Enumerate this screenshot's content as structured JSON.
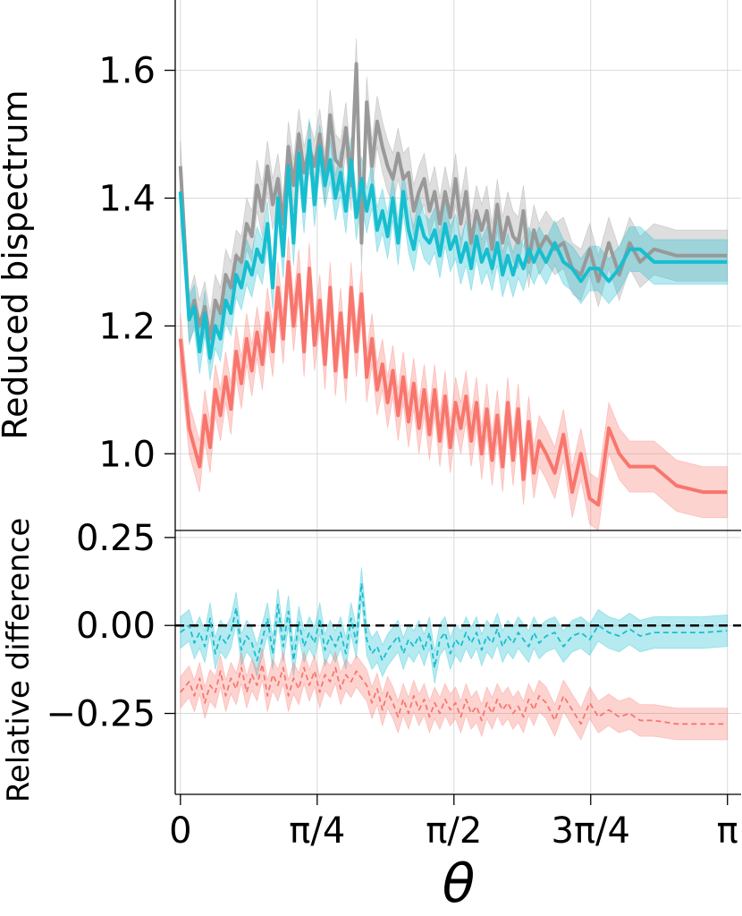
{
  "chart_data": [
    {
      "type": "line",
      "panel": "top",
      "ylabel": "Reduced bispectrum",
      "xlim": [
        -0.03,
        3.22
      ],
      "ylim": [
        0.88,
        1.71
      ],
      "grid": true,
      "x_ticks": [
        {
          "value": 0,
          "label": "0"
        },
        {
          "value": 0.785398,
          "label": "π/4"
        },
        {
          "value": 1.570796,
          "label": "π/2"
        },
        {
          "value": 2.356194,
          "label": "3π/4"
        },
        {
          "value": 3.141593,
          "label": "π"
        }
      ],
      "y_ticks": [
        {
          "value": 1.0,
          "label": "1.0"
        },
        {
          "value": 1.2,
          "label": "1.2"
        },
        {
          "value": 1.4,
          "label": "1.4"
        },
        {
          "value": 1.6,
          "label": "1.6"
        }
      ],
      "series": [
        {
          "name": "gray",
          "color": "#999999",
          "band_half_width": 0.04,
          "x": [
            0.0,
            0.05,
            0.08,
            0.11,
            0.14,
            0.17,
            0.2,
            0.23,
            0.26,
            0.29,
            0.32,
            0.35,
            0.38,
            0.41,
            0.44,
            0.47,
            0.5,
            0.53,
            0.56,
            0.59,
            0.62,
            0.65,
            0.68,
            0.71,
            0.74,
            0.77,
            0.8,
            0.83,
            0.86,
            0.89,
            0.92,
            0.95,
            0.98,
            1.01,
            1.04,
            1.07,
            1.1,
            1.13,
            1.16,
            1.19,
            1.22,
            1.25,
            1.28,
            1.31,
            1.34,
            1.37,
            1.4,
            1.43,
            1.46,
            1.49,
            1.52,
            1.55,
            1.58,
            1.61,
            1.64,
            1.67,
            1.7,
            1.73,
            1.76,
            1.79,
            1.82,
            1.85,
            1.88,
            1.91,
            1.94,
            1.97,
            2.0,
            2.03,
            2.06,
            2.1,
            2.15,
            2.2,
            2.25,
            2.3,
            2.35,
            2.4,
            2.46,
            2.52,
            2.58,
            2.64,
            2.72,
            2.85,
            3.0,
            3.14
          ],
          "y": [
            1.45,
            1.21,
            1.24,
            1.2,
            1.23,
            1.18,
            1.24,
            1.22,
            1.28,
            1.26,
            1.31,
            1.3,
            1.36,
            1.34,
            1.42,
            1.38,
            1.45,
            1.39,
            1.43,
            1.36,
            1.48,
            1.42,
            1.5,
            1.44,
            1.48,
            1.45,
            1.5,
            1.43,
            1.53,
            1.46,
            1.45,
            1.51,
            1.42,
            1.61,
            1.33,
            1.55,
            1.45,
            1.52,
            1.48,
            1.45,
            1.43,
            1.47,
            1.43,
            1.44,
            1.38,
            1.41,
            1.43,
            1.38,
            1.41,
            1.36,
            1.41,
            1.37,
            1.43,
            1.36,
            1.41,
            1.33,
            1.38,
            1.35,
            1.38,
            1.32,
            1.39,
            1.33,
            1.37,
            1.34,
            1.33,
            1.38,
            1.3,
            1.35,
            1.32,
            1.34,
            1.32,
            1.33,
            1.29,
            1.28,
            1.32,
            1.27,
            1.33,
            1.28,
            1.33,
            1.3,
            1.32,
            1.31,
            1.31,
            1.31
          ]
        },
        {
          "name": "cyan",
          "color": "#17BECF",
          "band_half_width": 0.035,
          "x": [
            0.0,
            0.05,
            0.08,
            0.11,
            0.14,
            0.17,
            0.2,
            0.23,
            0.26,
            0.29,
            0.32,
            0.35,
            0.38,
            0.41,
            0.44,
            0.47,
            0.5,
            0.53,
            0.56,
            0.59,
            0.62,
            0.65,
            0.68,
            0.71,
            0.74,
            0.77,
            0.8,
            0.83,
            0.86,
            0.89,
            0.92,
            0.95,
            0.98,
            1.01,
            1.04,
            1.07,
            1.1,
            1.13,
            1.16,
            1.19,
            1.22,
            1.25,
            1.28,
            1.31,
            1.34,
            1.37,
            1.4,
            1.43,
            1.46,
            1.49,
            1.52,
            1.55,
            1.58,
            1.61,
            1.64,
            1.67,
            1.7,
            1.73,
            1.76,
            1.79,
            1.82,
            1.85,
            1.88,
            1.91,
            1.94,
            1.97,
            2.0,
            2.03,
            2.06,
            2.1,
            2.15,
            2.2,
            2.25,
            2.3,
            2.35,
            2.4,
            2.46,
            2.52,
            2.58,
            2.64,
            2.72,
            2.85,
            3.0,
            3.14
          ],
          "y": [
            1.41,
            1.21,
            1.23,
            1.16,
            1.22,
            1.15,
            1.2,
            1.18,
            1.24,
            1.22,
            1.28,
            1.26,
            1.3,
            1.28,
            1.32,
            1.3,
            1.36,
            1.26,
            1.4,
            1.31,
            1.45,
            1.33,
            1.47,
            1.38,
            1.49,
            1.39,
            1.48,
            1.42,
            1.46,
            1.4,
            1.44,
            1.38,
            1.46,
            1.37,
            1.43,
            1.38,
            1.42,
            1.35,
            1.38,
            1.34,
            1.4,
            1.33,
            1.41,
            1.35,
            1.32,
            1.37,
            1.34,
            1.33,
            1.35,
            1.31,
            1.36,
            1.32,
            1.34,
            1.3,
            1.33,
            1.29,
            1.34,
            1.3,
            1.32,
            1.29,
            1.33,
            1.28,
            1.31,
            1.28,
            1.31,
            1.29,
            1.32,
            1.3,
            1.32,
            1.3,
            1.33,
            1.3,
            1.29,
            1.27,
            1.29,
            1.29,
            1.27,
            1.29,
            1.32,
            1.32,
            1.3,
            1.3,
            1.3,
            1.3
          ]
        },
        {
          "name": "red",
          "color": "#F8766D",
          "band_half_width": 0.04,
          "x": [
            0.0,
            0.05,
            0.08,
            0.11,
            0.14,
            0.17,
            0.2,
            0.23,
            0.26,
            0.29,
            0.32,
            0.35,
            0.38,
            0.41,
            0.44,
            0.47,
            0.5,
            0.53,
            0.56,
            0.59,
            0.62,
            0.65,
            0.68,
            0.71,
            0.74,
            0.77,
            0.8,
            0.83,
            0.86,
            0.89,
            0.92,
            0.95,
            0.98,
            1.01,
            1.04,
            1.07,
            1.1,
            1.13,
            1.16,
            1.19,
            1.22,
            1.25,
            1.28,
            1.31,
            1.34,
            1.37,
            1.4,
            1.43,
            1.46,
            1.49,
            1.52,
            1.55,
            1.58,
            1.61,
            1.64,
            1.67,
            1.7,
            1.73,
            1.76,
            1.79,
            1.82,
            1.85,
            1.88,
            1.91,
            1.94,
            1.97,
            2.0,
            2.03,
            2.06,
            2.1,
            2.15,
            2.2,
            2.25,
            2.3,
            2.35,
            2.4,
            2.46,
            2.52,
            2.58,
            2.64,
            2.72,
            2.85,
            3.0,
            3.14
          ],
          "y": [
            1.18,
            1.04,
            1.01,
            0.98,
            1.06,
            1.01,
            1.1,
            1.06,
            1.12,
            1.07,
            1.16,
            1.11,
            1.18,
            1.13,
            1.19,
            1.14,
            1.22,
            1.16,
            1.26,
            1.18,
            1.3,
            1.2,
            1.28,
            1.16,
            1.29,
            1.17,
            1.24,
            1.14,
            1.26,
            1.13,
            1.22,
            1.12,
            1.26,
            1.16,
            1.25,
            1.12,
            1.18,
            1.1,
            1.14,
            1.08,
            1.13,
            1.06,
            1.12,
            1.05,
            1.11,
            1.04,
            1.1,
            1.03,
            1.1,
            1.02,
            1.09,
            1.01,
            1.08,
            1.04,
            1.09,
            1.02,
            1.08,
            1.0,
            1.07,
            0.99,
            1.06,
            0.98,
            1.08,
            0.99,
            1.07,
            0.96,
            1.05,
            0.97,
            1.02,
            1.0,
            0.97,
            1.03,
            0.94,
            1.0,
            0.93,
            0.92,
            1.04,
            1.0,
            0.98,
            0.98,
            0.98,
            0.95,
            0.94,
            0.94
          ]
        }
      ]
    },
    {
      "type": "line",
      "panel": "bottom",
      "ylabel": "Relative difference",
      "xlabel": "θ",
      "xlim": [
        -0.03,
        3.22
      ],
      "ylim": [
        -0.48,
        0.27
      ],
      "grid": true,
      "reference_line": {
        "y": 0.0,
        "style": "dashed",
        "color": "#000000"
      },
      "y_ticks": [
        {
          "value": 0.25,
          "label": "0.25"
        },
        {
          "value": 0.0,
          "label": "0.00"
        },
        {
          "value": -0.25,
          "label": "−0.25"
        }
      ],
      "series": [
        {
          "name": "cyan",
          "color": "#17BECF",
          "style": "dashed",
          "band_half_width": 0.045,
          "x": [
            0.0,
            0.05,
            0.08,
            0.11,
            0.14,
            0.17,
            0.2,
            0.23,
            0.26,
            0.29,
            0.32,
            0.35,
            0.38,
            0.41,
            0.44,
            0.47,
            0.5,
            0.53,
            0.56,
            0.59,
            0.62,
            0.65,
            0.68,
            0.71,
            0.74,
            0.77,
            0.8,
            0.83,
            0.86,
            0.89,
            0.92,
            0.95,
            0.98,
            1.01,
            1.04,
            1.07,
            1.1,
            1.13,
            1.16,
            1.19,
            1.22,
            1.25,
            1.28,
            1.31,
            1.34,
            1.37,
            1.4,
            1.43,
            1.46,
            1.49,
            1.52,
            1.55,
            1.58,
            1.61,
            1.64,
            1.67,
            1.7,
            1.73,
            1.76,
            1.79,
            1.82,
            1.85,
            1.88,
            1.91,
            1.94,
            1.97,
            2.0,
            2.03,
            2.06,
            2.1,
            2.15,
            2.2,
            2.25,
            2.3,
            2.35,
            2.4,
            2.46,
            2.52,
            2.58,
            2.64,
            2.72,
            2.85,
            3.0,
            3.14
          ],
          "y": [
            -0.02,
            0.0,
            -0.05,
            -0.02,
            -0.06,
            0.02,
            -0.08,
            -0.03,
            -0.05,
            -0.02,
            0.05,
            -0.07,
            -0.03,
            -0.05,
            -0.1,
            -0.04,
            0.02,
            -0.08,
            0.06,
            -0.06,
            0.04,
            -0.1,
            0.01,
            -0.06,
            -0.02,
            -0.05,
            0.02,
            -0.07,
            -0.03,
            -0.06,
            -0.02,
            -0.08,
            0.02,
            -0.05,
            0.12,
            -0.04,
            -0.08,
            -0.06,
            -0.1,
            -0.07,
            -0.05,
            -0.03,
            -0.08,
            -0.04,
            -0.06,
            -0.03,
            -0.07,
            -0.02,
            -0.12,
            -0.04,
            -0.02,
            -0.08,
            -0.04,
            -0.06,
            -0.02,
            -0.05,
            -0.02,
            -0.07,
            -0.03,
            -0.05,
            -0.01,
            -0.06,
            -0.03,
            -0.05,
            -0.02,
            -0.04,
            -0.06,
            -0.02,
            -0.05,
            -0.03,
            -0.02,
            -0.06,
            -0.03,
            -0.02,
            -0.04,
            0.0,
            -0.02,
            -0.03,
            -0.01,
            -0.03,
            -0.02,
            -0.02,
            -0.02,
            -0.015
          ]
        },
        {
          "name": "red",
          "color": "#F8766D",
          "style": "dashed",
          "band_half_width": 0.045,
          "x": [
            0.0,
            0.05,
            0.08,
            0.11,
            0.14,
            0.17,
            0.2,
            0.23,
            0.26,
            0.29,
            0.32,
            0.35,
            0.38,
            0.41,
            0.44,
            0.47,
            0.5,
            0.53,
            0.56,
            0.59,
            0.62,
            0.65,
            0.68,
            0.71,
            0.74,
            0.77,
            0.8,
            0.83,
            0.86,
            0.89,
            0.92,
            0.95,
            0.98,
            1.01,
            1.04,
            1.07,
            1.1,
            1.13,
            1.16,
            1.19,
            1.22,
            1.25,
            1.28,
            1.31,
            1.34,
            1.37,
            1.4,
            1.43,
            1.46,
            1.49,
            1.52,
            1.55,
            1.58,
            1.61,
            1.64,
            1.67,
            1.7,
            1.73,
            1.76,
            1.79,
            1.82,
            1.85,
            1.88,
            1.91,
            1.94,
            1.97,
            2.0,
            2.03,
            2.06,
            2.1,
            2.15,
            2.2,
            2.25,
            2.3,
            2.35,
            2.4,
            2.46,
            2.52,
            2.58,
            2.64,
            2.72,
            2.85,
            3.0,
            3.14
          ],
          "y": [
            -0.19,
            -0.16,
            -0.2,
            -0.15,
            -0.22,
            -0.17,
            -0.19,
            -0.13,
            -0.2,
            -0.15,
            -0.18,
            -0.12,
            -0.19,
            -0.14,
            -0.17,
            -0.11,
            -0.2,
            -0.14,
            -0.17,
            -0.12,
            -0.2,
            -0.15,
            -0.18,
            -0.12,
            -0.17,
            -0.13,
            -0.19,
            -0.14,
            -0.16,
            -0.12,
            -0.18,
            -0.14,
            -0.16,
            -0.13,
            -0.15,
            -0.17,
            -0.22,
            -0.18,
            -0.24,
            -0.19,
            -0.22,
            -0.26,
            -0.21,
            -0.25,
            -0.2,
            -0.24,
            -0.21,
            -0.26,
            -0.22,
            -0.25,
            -0.21,
            -0.24,
            -0.22,
            -0.26,
            -0.21,
            -0.25,
            -0.23,
            -0.27,
            -0.22,
            -0.25,
            -0.21,
            -0.24,
            -0.22,
            -0.25,
            -0.23,
            -0.26,
            -0.21,
            -0.24,
            -0.2,
            -0.22,
            -0.27,
            -0.2,
            -0.24,
            -0.28,
            -0.22,
            -0.26,
            -0.24,
            -0.26,
            -0.25,
            -0.27,
            -0.27,
            -0.28,
            -0.28,
            -0.28
          ]
        }
      ]
    }
  ]
}
